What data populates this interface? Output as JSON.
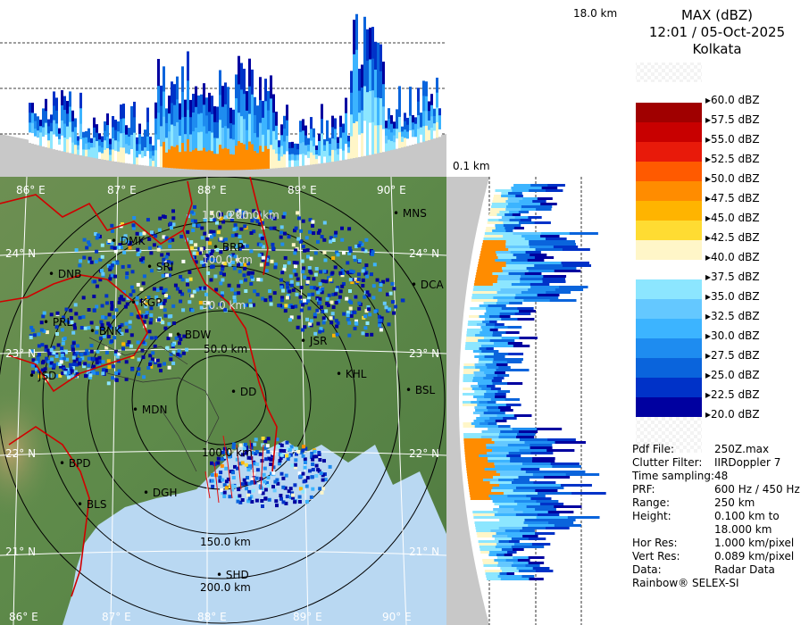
{
  "header": {
    "top_height_label": "18.0 km",
    "side_base_label": "0.1 km"
  },
  "panel": {
    "product": "MAX (dBZ)",
    "datetime": "12:01 / 05-Oct-2025",
    "station": "Kolkata"
  },
  "legend": [
    {
      "label": "60.0 dBZ",
      "color": "#ffffff"
    },
    {
      "label": "57.5 dBZ",
      "color": "#a00000"
    },
    {
      "label": "55.0 dBZ",
      "color": "#c80000"
    },
    {
      "label": "52.5 dBZ",
      "color": "#e81a0a"
    },
    {
      "label": "50.0 dBZ",
      "color": "#ff5a00"
    },
    {
      "label": "47.5 dBZ",
      "color": "#ff8c00"
    },
    {
      "label": "45.0 dBZ",
      "color": "#ffb400"
    },
    {
      "label": "42.5 dBZ",
      "color": "#ffdc32"
    },
    {
      "label": "40.0 dBZ",
      "color": "#fff6c8"
    },
    {
      "label": "37.5 dBZ",
      "color": "#ffffff"
    },
    {
      "label": "35.0 dBZ",
      "color": "#8ce6ff"
    },
    {
      "label": "32.5 dBZ",
      "color": "#64c8ff"
    },
    {
      "label": "30.0 dBZ",
      "color": "#3cb4ff"
    },
    {
      "label": "27.5 dBZ",
      "color": "#1e8cf0"
    },
    {
      "label": "25.0 dBZ",
      "color": "#0a64dc"
    },
    {
      "label": "22.5 dBZ",
      "color": "#0032c8"
    },
    {
      "label": "20.0 dBZ",
      "color": "#0000a0"
    }
  ],
  "info": [
    {
      "key": "Pdf File:",
      "value": "250Z.max"
    },
    {
      "key": "Clutter Filter:",
      "value": "IIRDoppler 7"
    },
    {
      "key": "Time sampling:",
      "value": "48"
    },
    {
      "key": "PRF:",
      "value": "600 Hz / 450 Hz"
    },
    {
      "key": "Range:",
      "value": "250 km"
    },
    {
      "key": "Height:",
      "value": "0.100 km to"
    },
    {
      "key": "",
      "value": "18.000 km"
    },
    {
      "key": "Hor Res:",
      "value": "1.000 km/pixel"
    },
    {
      "key": "Vert Res:",
      "value": "0.089 km/pixel"
    },
    {
      "key": "Data:",
      "value": "Radar Data"
    }
  ],
  "footer": "Rainbow® SELEX-SI",
  "map": {
    "lon_top": [
      "86° E",
      "87° E",
      "88° E",
      "89° E",
      "90° E"
    ],
    "lon_bottom": [
      "86° E",
      "87° E",
      "88° E",
      "89° E",
      "90° E"
    ],
    "lat_left": [
      "24° N",
      "23° N",
      "22° N",
      "21° N"
    ],
    "lat_right": [
      "24° N",
      "23° N",
      "22° N",
      "21° N"
    ],
    "range_rings": [
      "50.0 km",
      "100.0 km",
      "150.0 km",
      "200.0 km"
    ],
    "range_rings_north": [
      "50.0 km",
      "100.0 km",
      "150.0 km",
      "200.0 km"
    ],
    "cities": [
      "MNS",
      "DMK",
      "BRP",
      "DNB",
      "SRI",
      "DCA",
      "PRL",
      "KGP",
      "BNK",
      "BDW",
      "JSR",
      "KHL",
      "JSD",
      "BSL",
      "MDN",
      "BPD",
      "DGH",
      "BLS",
      "SHD",
      "DD"
    ]
  }
}
